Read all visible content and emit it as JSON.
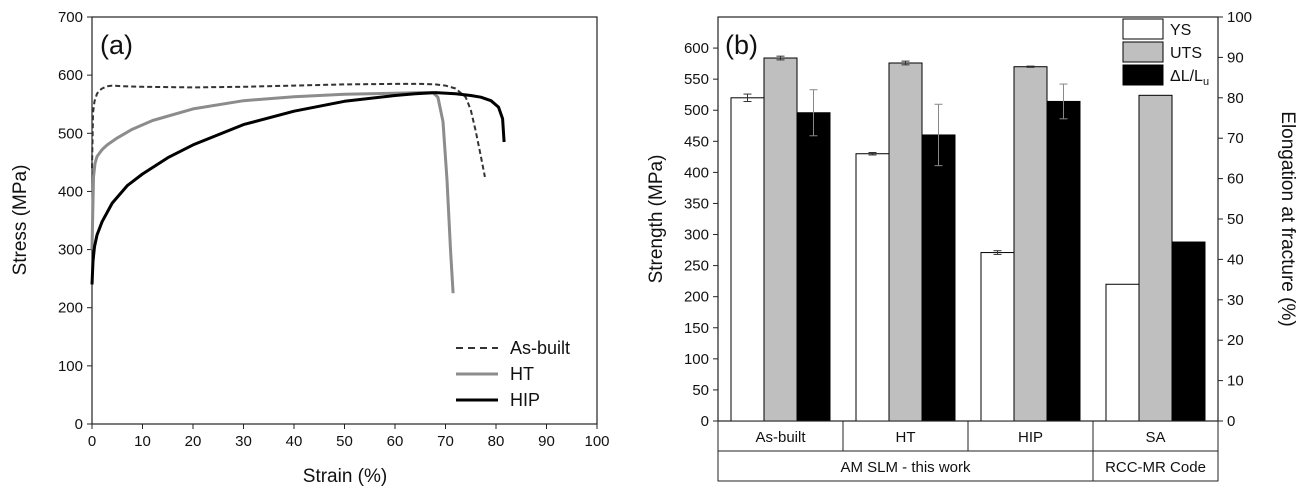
{
  "chart_data": [
    {
      "type": "line",
      "panel_label": "(a)",
      "xlabel": "Strain (%)",
      "ylabel": "Stress (MPa)",
      "xlim": [
        0,
        100
      ],
      "ylim": [
        0,
        700
      ],
      "xticks": [
        "0",
        "10",
        "20",
        "30",
        "40",
        "50",
        "60",
        "70",
        "80",
        "90",
        "100"
      ],
      "yticks": [
        "0",
        "100",
        "200",
        "300",
        "400",
        "500",
        "600",
        "700"
      ],
      "legend_position": "bottom-right",
      "series": [
        {
          "name": "As-built",
          "style": "dashed",
          "color": "#333333",
          "x": [
            0,
            0.2,
            0.5,
            1.0,
            1.5,
            2.0,
            3.0,
            4.0,
            6,
            10,
            20,
            30,
            40,
            50,
            60,
            65,
            68,
            70,
            72,
            74,
            75,
            76,
            77,
            77.8
          ],
          "y": [
            440,
            535,
            555,
            568,
            574,
            577,
            581,
            582,
            581,
            580,
            579,
            580,
            582,
            584,
            585,
            585,
            584,
            582,
            577,
            562,
            540,
            503,
            460,
            425
          ]
        },
        {
          "name": "HT",
          "style": "solid",
          "color": "#8c8c8c",
          "x": [
            0,
            0.3,
            0.6,
            1.0,
            2,
            3,
            5,
            8,
            12,
            20,
            30,
            40,
            50,
            60,
            65,
            67.5,
            68.5,
            69.5,
            70.3,
            71.0,
            71.5
          ],
          "y": [
            300,
            425,
            448,
            460,
            472,
            480,
            492,
            507,
            522,
            542,
            556,
            563,
            567,
            569,
            570,
            570,
            562,
            520,
            420,
            300,
            225
          ]
        },
        {
          "name": "HIP",
          "style": "solid",
          "color": "#000000",
          "x": [
            0,
            0.2,
            0.5,
            1,
            2,
            4,
            7,
            10,
            15,
            20,
            30,
            40,
            50,
            60,
            64,
            68,
            72,
            75,
            77,
            79,
            80.5,
            81.3,
            81.6
          ],
          "y": [
            240,
            280,
            305,
            325,
            348,
            380,
            410,
            430,
            458,
            480,
            515,
            538,
            555,
            565,
            568,
            570,
            568,
            565,
            562,
            556,
            545,
            525,
            485
          ]
        }
      ]
    },
    {
      "type": "bar",
      "panel_label": "(b)",
      "ylabel": "Strength (MPa)",
      "y2label": "Elongation at fracture (%)",
      "ylim": [
        0,
        650
      ],
      "y2lim": [
        0,
        100
      ],
      "yticks": [
        "0",
        "50",
        "100",
        "150",
        "200",
        "250",
        "300",
        "350",
        "400",
        "450",
        "500",
        "550",
        "600"
      ],
      "y2ticks": [
        "0",
        "10",
        "20",
        "30",
        "40",
        "50",
        "60",
        "70",
        "80",
        "90",
        "100"
      ],
      "categories": [
        "As-built",
        "HT",
        "HIP",
        "SA"
      ],
      "groups": [
        {
          "label": "AM SLM - this work",
          "span": 3
        },
        {
          "label": "RCC-MR Code",
          "span": 1
        }
      ],
      "legend_position": "top-right",
      "series": [
        {
          "name": "YS",
          "axis": "left",
          "fill": "#ffffff",
          "values": [
            520,
            430,
            271,
            220
          ],
          "errors": [
            6,
            2,
            3,
            0
          ]
        },
        {
          "name": "UTS",
          "axis": "left",
          "fill": "#bfbfbf",
          "values": [
            584,
            576,
            570,
            524
          ],
          "errors": [
            3,
            3,
            1,
            0
          ]
        },
        {
          "name": "ΔL/L",
          "name_subscript": "u",
          "axis": "right",
          "fill": "#000000",
          "values": [
            76.3,
            70.8,
            79.1,
            44.3
          ],
          "errors": [
            5.7,
            7.6,
            4.3,
            0
          ]
        }
      ]
    }
  ]
}
